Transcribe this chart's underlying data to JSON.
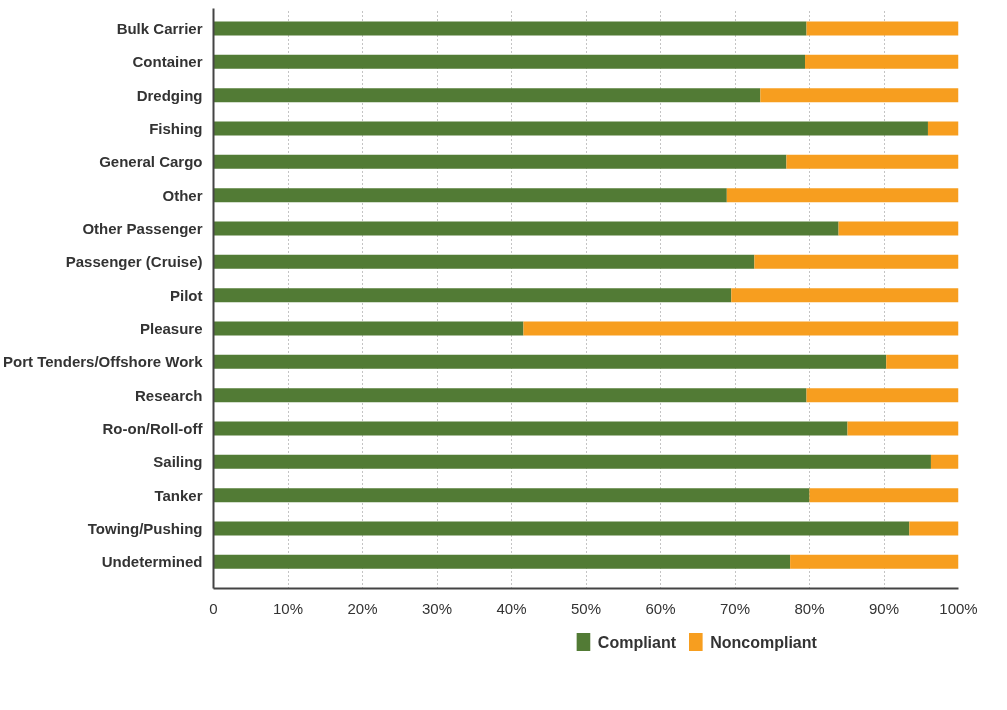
{
  "chart_data": {
    "type": "bar",
    "orientation": "horizontal",
    "stacked": true,
    "categories": [
      "Bulk Carrier",
      "Container",
      "Dredging",
      "Fishing",
      "General Cargo",
      "Other",
      "Other Passenger",
      "Passenger (Cruise)",
      "Pilot",
      "Pleasure",
      "Port Tenders/Offshore Work",
      "Research",
      "Ro-on/Roll-off",
      "Sailing",
      "Tanker",
      "Towing/Pushing",
      "Undetermined"
    ],
    "series": [
      {
        "name": "Compliant",
        "color": "#527b35",
        "values": [
          79.6,
          79.4,
          73.4,
          95.9,
          76.9,
          68.9,
          83.9,
          72.6,
          69.5,
          41.6,
          90.3,
          79.6,
          85.1,
          96.3,
          80.0,
          93.4,
          77.4
        ]
      },
      {
        "name": "Noncompliant",
        "color": "#f79e1f",
        "values": [
          20.4,
          20.6,
          26.6,
          4.1,
          23.1,
          31.1,
          16.1,
          27.4,
          30.5,
          58.4,
          9.7,
          20.4,
          14.9,
          3.7,
          20.0,
          6.6,
          22.6
        ]
      }
    ],
    "xlim": [
      0,
      100
    ],
    "xticks": [
      0,
      {
        "value": 10,
        "label": "10%"
      },
      {
        "value": 20,
        "label": "20%"
      },
      {
        "value": 30,
        "label": "30%"
      },
      {
        "value": 40,
        "label": "40%"
      },
      {
        "value": 50,
        "label": "50%"
      },
      {
        "value": 60,
        "label": "60%"
      },
      {
        "value": 70,
        "label": "70%"
      },
      {
        "value": 80,
        "label": "80%"
      },
      {
        "value": 90,
        "label": "90%"
      },
      {
        "value": 100,
        "label": "100%"
      }
    ],
    "grid": "x",
    "legend": "bottom"
  }
}
